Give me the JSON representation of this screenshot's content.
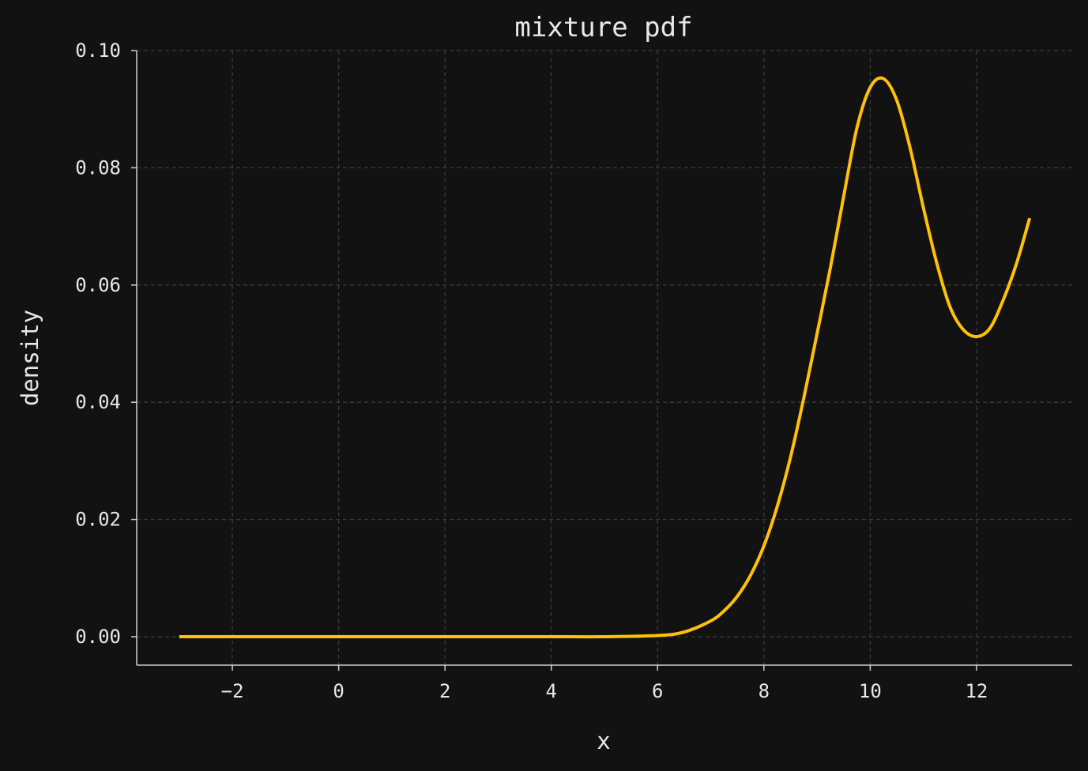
{
  "chart_data": {
    "type": "line",
    "title": "mixture pdf",
    "xlabel": "x",
    "ylabel": "density",
    "xlim": [
      -3.8,
      13.8
    ],
    "ylim": [
      -0.0048,
      0.1
    ],
    "xticks": [
      -2,
      0,
      2,
      4,
      6,
      8,
      10,
      12
    ],
    "xtick_labels": [
      "−2",
      "0",
      "2",
      "4",
      "6",
      "8",
      "10",
      "12"
    ],
    "yticks": [
      0.0,
      0.02,
      0.04,
      0.06,
      0.08,
      0.1
    ],
    "ytick_labels": [
      "0.00",
      "0.02",
      "0.04",
      "0.06",
      "0.08",
      "0.10"
    ],
    "grid": true,
    "colors": {
      "background": "#121212",
      "line": "#ffc107",
      "text": "#e8e8e8",
      "grid": "#3a3a3a"
    },
    "series": [
      {
        "x": [
          -3,
          -2,
          -1,
          0,
          1,
          2,
          3,
          4,
          5,
          6,
          6.5,
          7,
          7.25,
          7.5,
          7.75,
          8,
          8.25,
          8.5,
          8.75,
          9,
          9.25,
          9.5,
          9.75,
          10,
          10.25,
          10.5,
          10.75,
          11,
          11.25,
          11.5,
          11.75,
          12,
          12.25,
          12.5,
          12.75,
          13
        ],
        "y": [
          0,
          0,
          0,
          0,
          0,
          0,
          0,
          0,
          0,
          0.0002,
          0.0008,
          0.0027,
          0.0044,
          0.0069,
          0.0105,
          0.0155,
          0.0222,
          0.0306,
          0.0407,
          0.0517,
          0.0629,
          0.0751,
          0.0868,
          0.0937,
          0.0952,
          0.0915,
          0.0834,
          0.0732,
          0.0638,
          0.0563,
          0.0524,
          0.0512,
          0.0526,
          0.0574,
          0.0636,
          0.0714
        ]
      }
    ]
  }
}
